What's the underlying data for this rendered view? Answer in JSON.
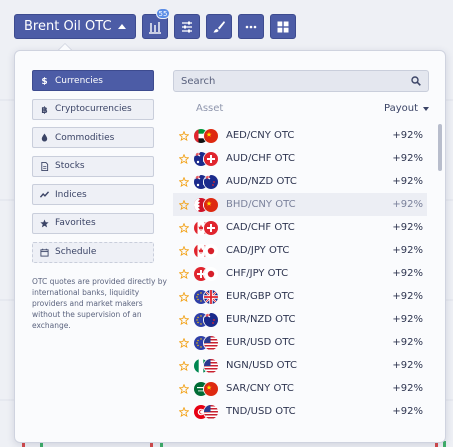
{
  "toolbar": {
    "asset": "Brent Oil OTC",
    "badge": "55"
  },
  "categories": [
    {
      "label": "Currencies",
      "icon": "dollar-icon",
      "active": true
    },
    {
      "label": "Cryptocurrencies",
      "icon": "bitcoin-icon",
      "active": false
    },
    {
      "label": "Commodities",
      "icon": "drop-icon",
      "active": false
    },
    {
      "label": "Stocks",
      "icon": "document-icon",
      "active": false
    },
    {
      "label": "Indices",
      "icon": "trend-icon",
      "active": false
    },
    {
      "label": "Favorites",
      "icon": "star-icon",
      "active": false
    },
    {
      "label": "Schedule",
      "icon": "calendar-icon",
      "active": false
    }
  ],
  "note": "OTC quotes are provided directly by international banks, liquidity providers and market makers without the supervision of an exchange.",
  "search": {
    "placeholder": "Search"
  },
  "list_header": {
    "asset": "Asset",
    "payout": "Payout"
  },
  "assets": [
    {
      "name": "AED/CNY OTC",
      "payout": "+92%",
      "flags": [
        "ae",
        "cn"
      ]
    },
    {
      "name": "AUD/CHF OTC",
      "payout": "+92%",
      "flags": [
        "au",
        "ch"
      ]
    },
    {
      "name": "AUD/NZD OTC",
      "payout": "+92%",
      "flags": [
        "au",
        "nz"
      ]
    },
    {
      "name": "BHD/CNY OTC",
      "payout": "+92%",
      "flags": [
        "bh",
        "cn"
      ]
    },
    {
      "name": "CAD/CHF OTC",
      "payout": "+92%",
      "flags": [
        "ca",
        "ch"
      ]
    },
    {
      "name": "CAD/JPY OTC",
      "payout": "+92%",
      "flags": [
        "ca",
        "jp"
      ]
    },
    {
      "name": "CHF/JPY OTC",
      "payout": "+92%",
      "flags": [
        "ch",
        "jp"
      ]
    },
    {
      "name": "EUR/GBP OTC",
      "payout": "+92%",
      "flags": [
        "eu",
        "gb"
      ]
    },
    {
      "name": "EUR/NZD OTC",
      "payout": "+92%",
      "flags": [
        "eu",
        "nz"
      ]
    },
    {
      "name": "EUR/USD OTC",
      "payout": "+92%",
      "flags": [
        "eu",
        "us"
      ]
    },
    {
      "name": "NGN/USD OTC",
      "payout": "+92%",
      "flags": [
        "ng",
        "us"
      ]
    },
    {
      "name": "SAR/CNY OTC",
      "payout": "+92%",
      "flags": [
        "sa",
        "cn"
      ]
    },
    {
      "name": "TND/USD OTC",
      "payout": "+92%",
      "flags": [
        "tn",
        "us"
      ]
    }
  ],
  "highlighted_row": 3,
  "colors": {
    "accent": "#4c5ca6",
    "star": "#f2a31b"
  }
}
